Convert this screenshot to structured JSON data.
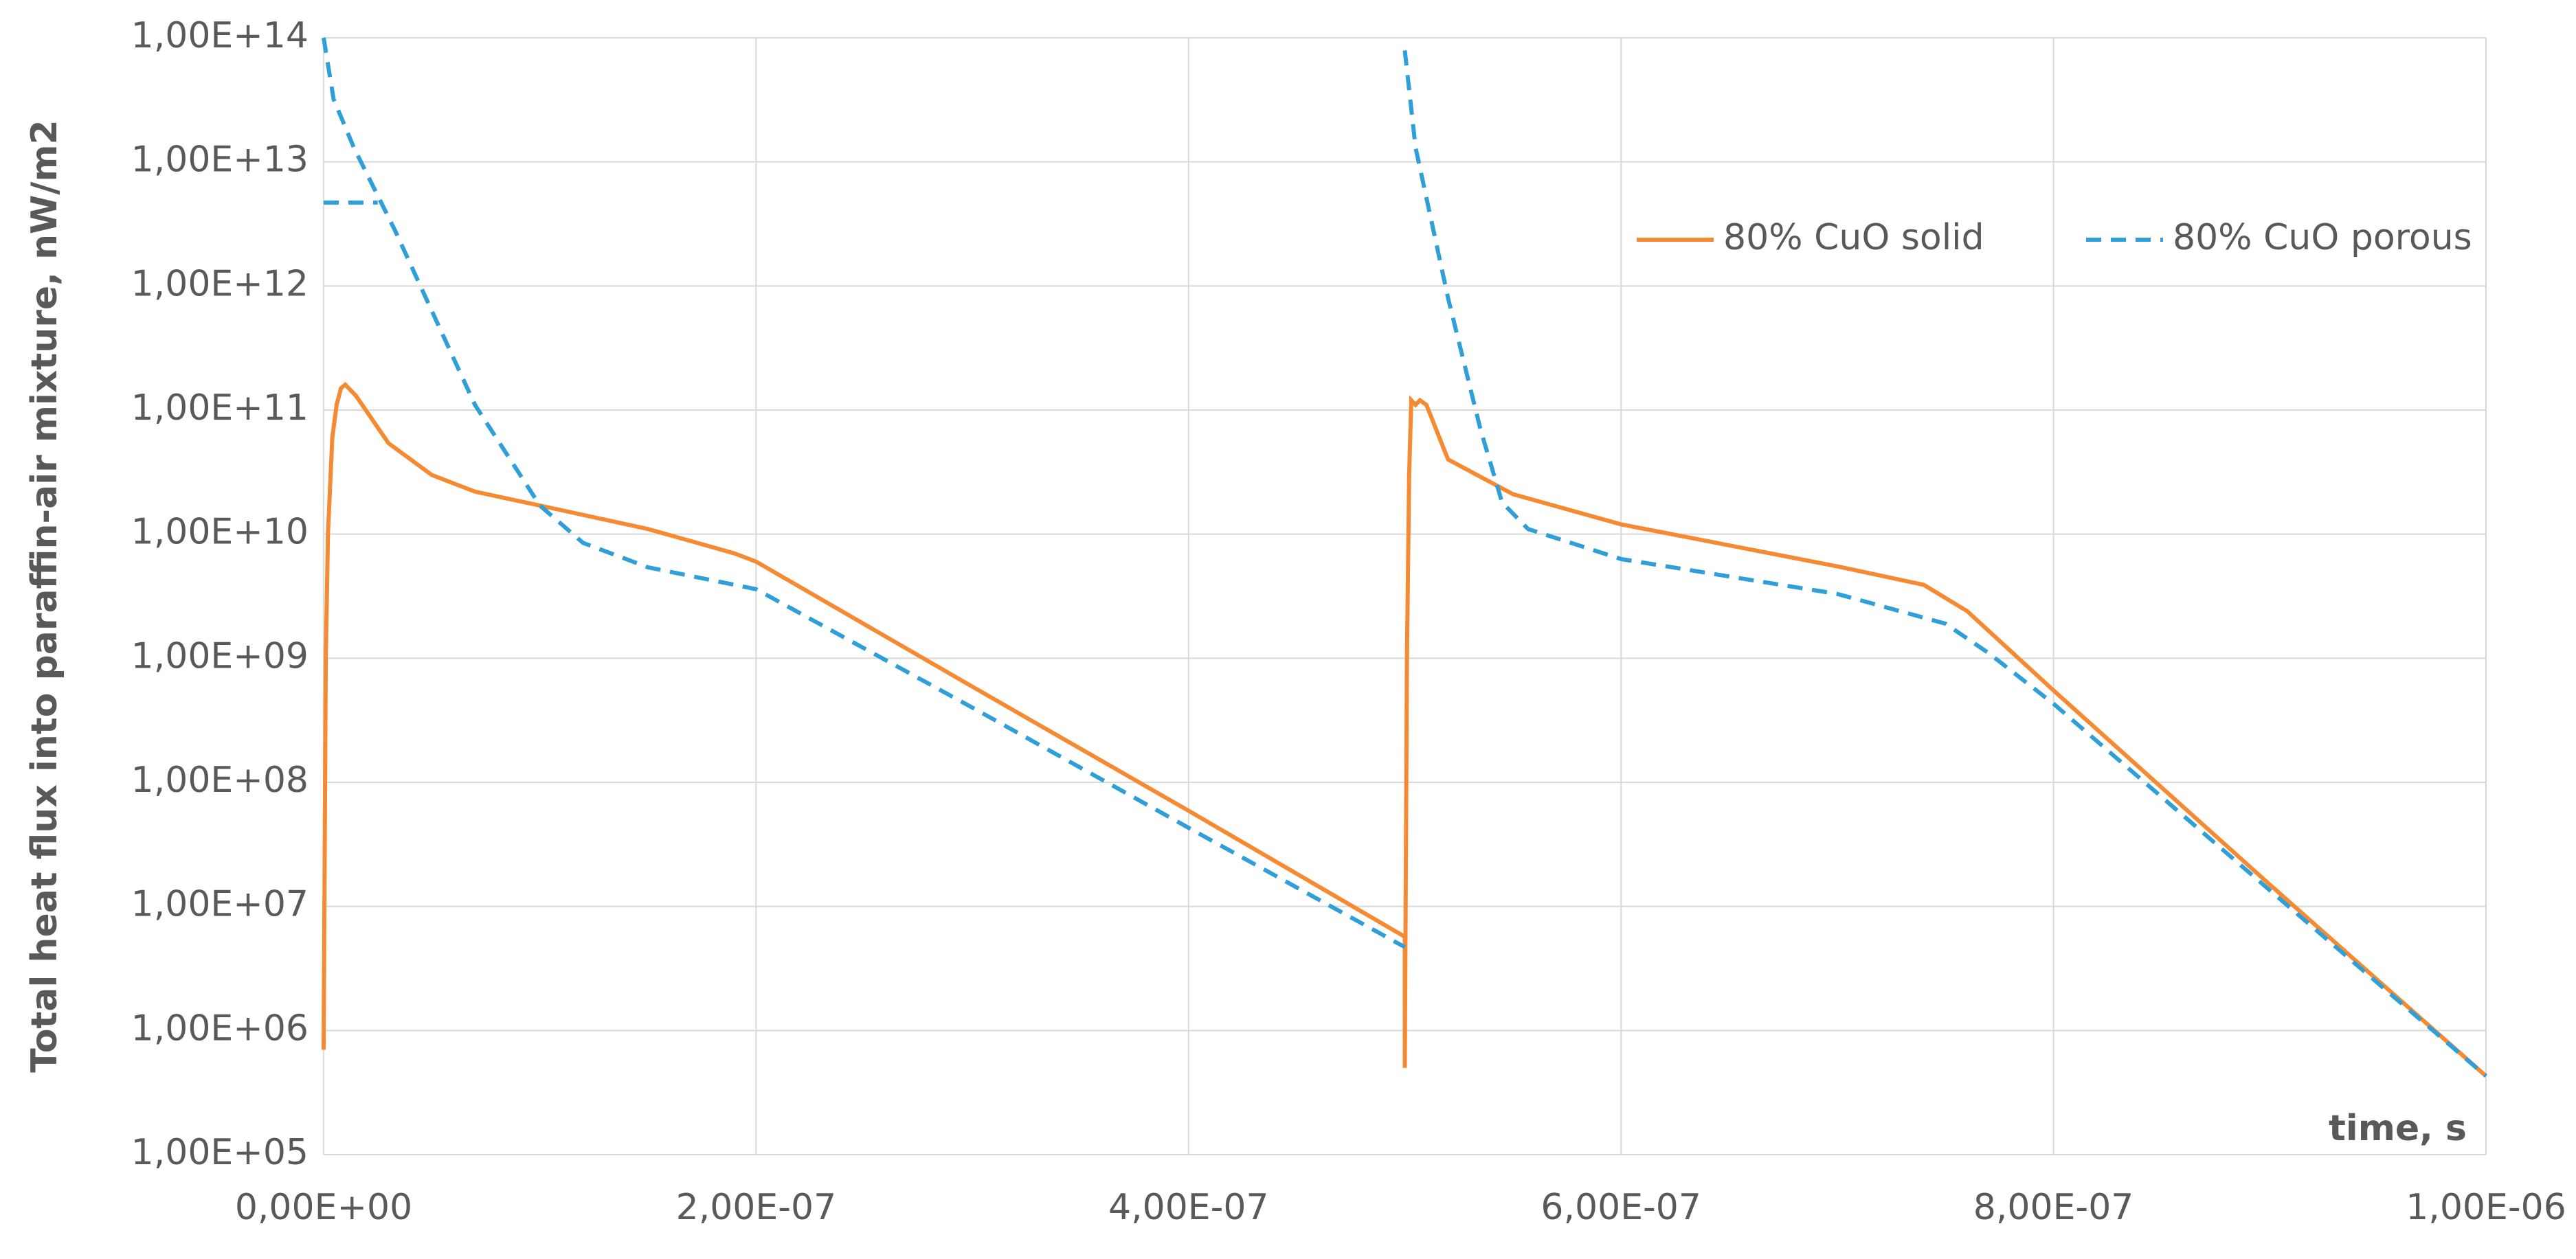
{
  "chart_data": {
    "type": "line",
    "y_label": "Total heat flux  into paraffin-air mixture, nW/m2",
    "x_label": "time, s",
    "log_y": true,
    "grid": true,
    "legend": "upper right",
    "xlim": [
      0,
      1e-06
    ],
    "ylim": [
      100000,
      100000000000000
    ],
    "xticks": [
      {
        "value": 0,
        "label": "0,00E+00"
      },
      {
        "value": 2e-07,
        "label": "2,00E-07"
      },
      {
        "value": 4e-07,
        "label": "4,00E-07"
      },
      {
        "value": 6e-07,
        "label": "6,00E-07"
      },
      {
        "value": 8e-07,
        "label": "8,00E-07"
      },
      {
        "value": 1e-06,
        "label": "1,00E-06"
      }
    ],
    "yticks": [
      {
        "value": 100000,
        "label": "1,00E+05"
      },
      {
        "value": 1000000,
        "label": "1,00E+06"
      },
      {
        "value": 10000000,
        "label": "1,00E+07"
      },
      {
        "value": 100000000,
        "label": "1,00E+08"
      },
      {
        "value": 1000000000,
        "label": "1,00E+09"
      },
      {
        "value": 10000000000,
        "label": "1,00E+10"
      },
      {
        "value": 100000000000,
        "label": "1,00E+11"
      },
      {
        "value": 1000000000000,
        "label": "1,00E+12"
      },
      {
        "value": 10000000000000,
        "label": "1,00E+13"
      },
      {
        "value": 100000000000000,
        "label": "1,00E+14"
      }
    ],
    "series": [
      {
        "name": "80% CuO solid",
        "color": "#f58a32",
        "dash": false,
        "x": [
          0,
          1e-09,
          2e-09,
          4e-09,
          6e-09,
          8e-09,
          1e-08,
          1.5e-08,
          3e-08,
          5e-08,
          7e-08,
          1e-07,
          1.5e-07,
          1.9e-07,
          2e-07,
          3e-07,
          4e-07,
          5e-07,
          5e-07,
          5.01e-07,
          5.02e-07,
          5.03e-07,
          5.05e-07,
          5.07e-07,
          5.1e-07,
          5.2e-07,
          5.5e-07,
          6e-07,
          7e-07,
          7.4e-07,
          7.6e-07,
          8e-07,
          9e-07,
          1e-06
        ],
        "values": [
          700000,
          1000000000,
          10000000000,
          60000000000,
          110000000000,
          150000000000,
          160000000000,
          130000000000,
          54000000000,
          30000000000,
          22000000000,
          17000000000,
          11000000000,
          7000000000,
          6000000000,
          590000000,
          59000000,
          5700000,
          500000,
          1000000000,
          30000000000,
          120000000000,
          110000000000,
          120000000000,
          110000000000,
          40000000000,
          21000000000,
          12000000000,
          5500000000,
          3900000000,
          2400000000,
          550000000,
          15000000,
          430000
        ]
      },
      {
        "name": "80% CuO porous",
        "color": "#2e9fd8",
        "dash": true,
        "x": [
          0,
          2.5e-08,
          2.5e-08,
          0,
          4.6e-09,
          1.4e-08,
          3.3e-08,
          5.2e-08,
          7e-08,
          1e-07,
          1.2e-07,
          1.5e-07,
          2e-07,
          3e-07,
          4e-07,
          5e-07,
          5e-07,
          5e-07,
          5.05e-07,
          5.2e-07,
          5.35e-07,
          5.45e-07,
          5.57e-07,
          6e-07,
          7e-07,
          7.5e-07,
          7.7e-07,
          8e-07,
          9e-07,
          1e-06
        ],
        "values": [
          4700000000000,
          4700000000000,
          null,
          100000000000000,
          32000000000000,
          13000000000000,
          2800000000000,
          530000000000,
          110000000000,
          17000000000,
          8500000000,
          5400000000,
          3600000000,
          400000000,
          43000000,
          4700000,
          null,
          79000000000000,
          13000000000000,
          800000000000,
          70000000000,
          18000000000,
          11000000000,
          6300000000,
          3300000000,
          1900000000,
          1100000000,
          430000000,
          13500000,
          430000
        ]
      }
    ]
  }
}
